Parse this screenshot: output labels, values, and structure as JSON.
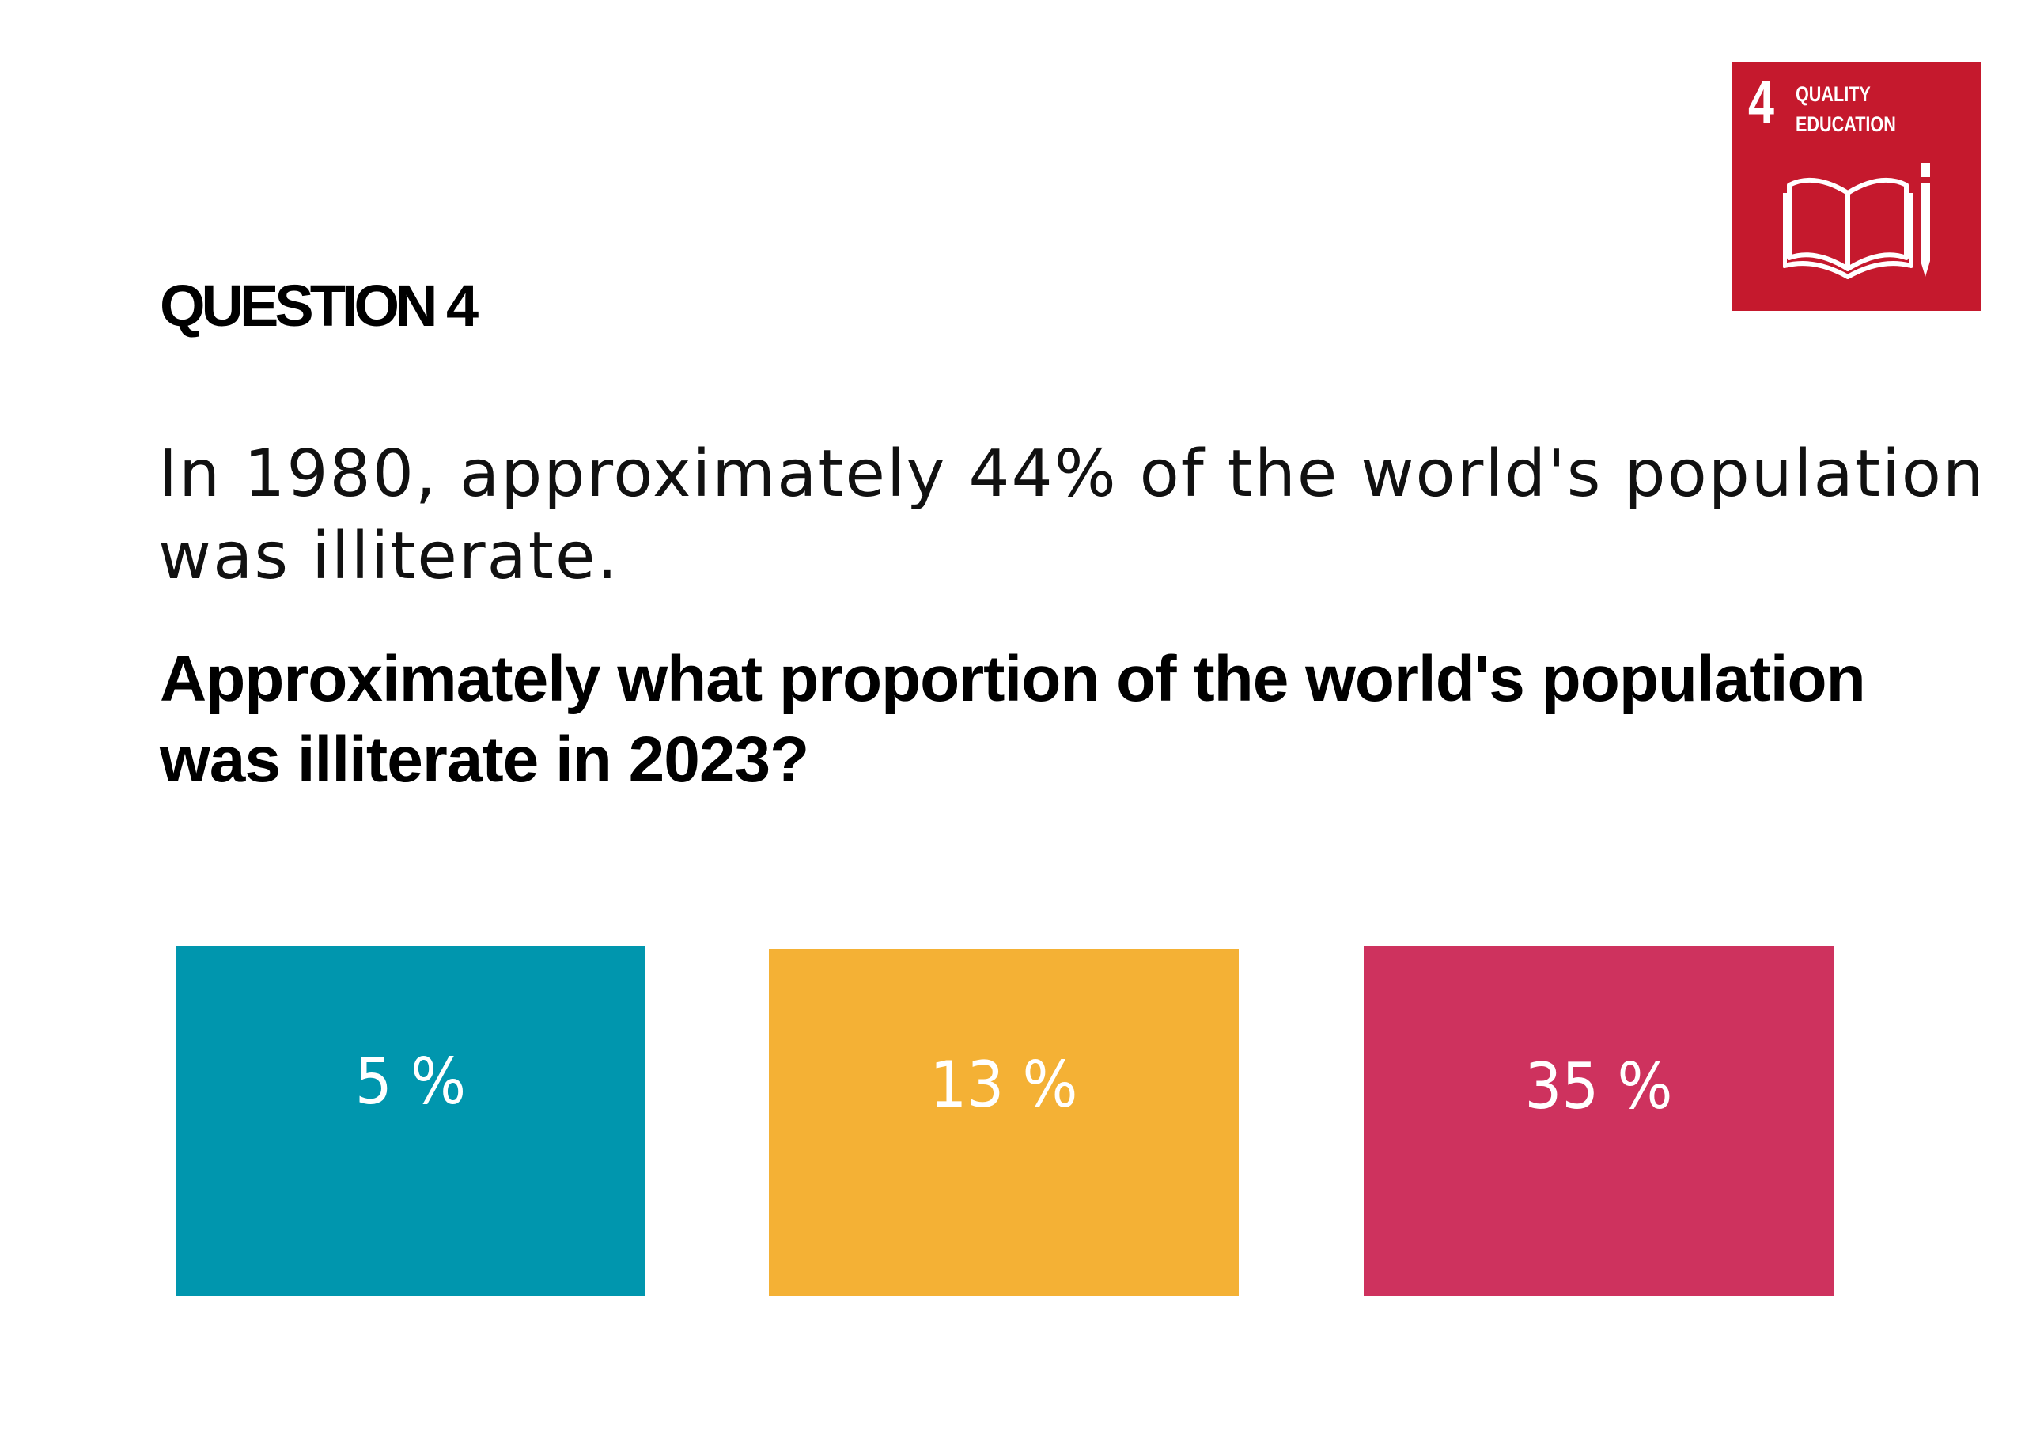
{
  "sdg_badge": {
    "number": "4",
    "title_line1": "QUALITY",
    "title_line2": "EDUCATION",
    "icon": "book-pencil-icon",
    "color": "#C5192D"
  },
  "question": {
    "label": "QUESTION 4",
    "statement": "In 1980, approximately 44% of the world's population was illiterate.",
    "prompt": "Approximately what proportion of the world's population was illiterate in 2023?"
  },
  "options": [
    {
      "label": "5 %",
      "color": "#0096AE"
    },
    {
      "label": "13 %",
      "color": "#F4B135"
    },
    {
      "label": "35 %",
      "color": "#CE325E"
    }
  ]
}
